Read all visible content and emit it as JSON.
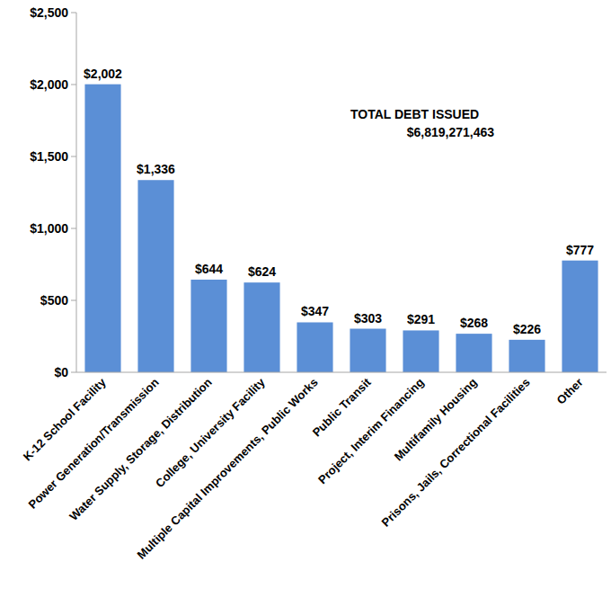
{
  "chart_data": {
    "type": "bar",
    "categories": [
      "K-12 School Facility",
      "Power Generation/Transmission",
      "Water Supply, Storage, Distribution",
      "College, University Facility",
      "Multiple Capital Improvements, Public Works",
      "Public Transit",
      "Project, Interim Financing",
      "Multifamily Housing",
      "Prisons, Jails, Correctional Facilities",
      "Other"
    ],
    "values": [
      2002,
      1336,
      644,
      624,
      347,
      303,
      291,
      268,
      226,
      777
    ],
    "value_labels": [
      "$2,002",
      "$1,336",
      "$644",
      "$624",
      "$347",
      "$303",
      "$291",
      "$268",
      "$226",
      "$777"
    ],
    "color": "#5b8fd6",
    "ylim": [
      0,
      2500
    ],
    "yticks": [
      {
        "value": 0,
        "label": "$0"
      },
      {
        "value": 500,
        "label": "$500"
      },
      {
        "value": 1000,
        "label": "$1,000"
      },
      {
        "value": 1500,
        "label": "$1,500"
      },
      {
        "value": 2000,
        "label": "$2,000"
      },
      {
        "value": 2500,
        "label": "$2,500"
      }
    ],
    "grid": false,
    "data_labels": true,
    "annotations": [
      "TOTAL DEBT ISSUED",
      "$6,819,271,463"
    ]
  }
}
